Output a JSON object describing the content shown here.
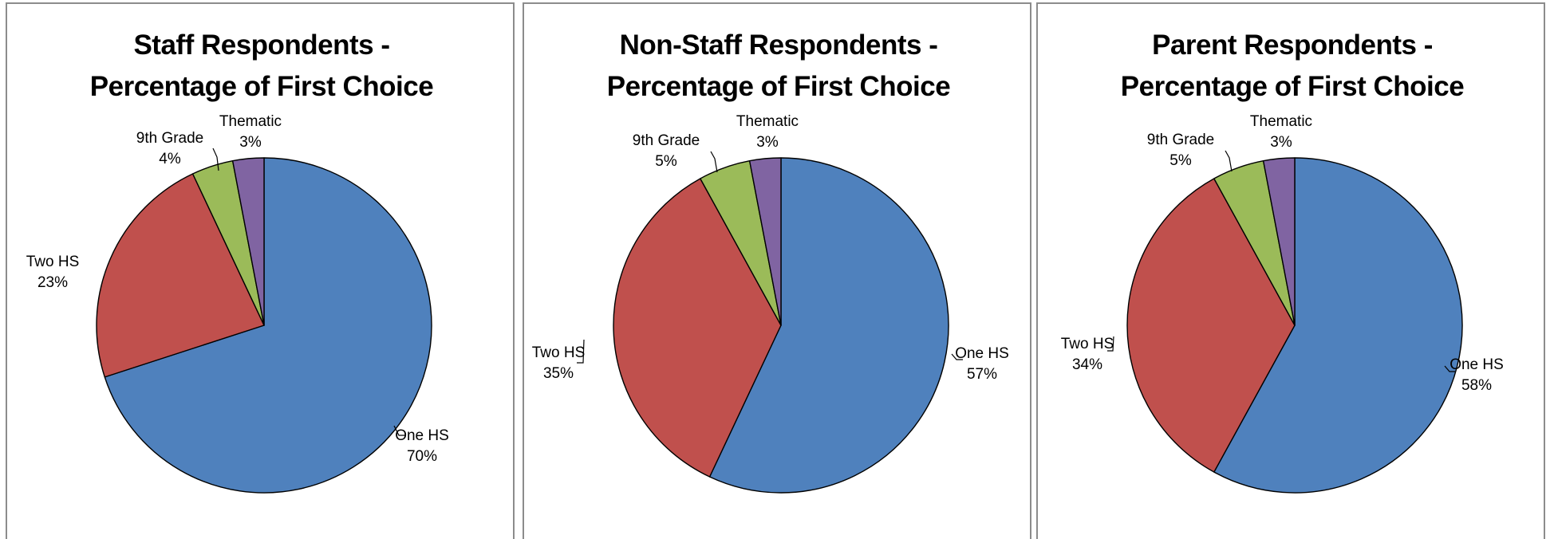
{
  "chart_data": [
    {
      "type": "pie",
      "title": [
        "Staff Respondents -",
        "Percentage of First Choice"
      ],
      "labels": [
        "One HS",
        "Two HS",
        "9th Grade",
        "Thematic"
      ],
      "values": [
        70,
        23,
        4,
        3
      ],
      "value_labels": [
        "70%",
        "23%",
        "4%",
        "3%"
      ],
      "colors": [
        "#4F81BD",
        "#C0504D",
        "#9BBB59",
        "#8064A2"
      ]
    },
    {
      "type": "pie",
      "title": [
        "Non-Staff Respondents -",
        "Percentage of First Choice"
      ],
      "labels": [
        "One HS",
        "Two HS",
        "9th Grade",
        "Thematic"
      ],
      "values": [
        57,
        35,
        5,
        3
      ],
      "value_labels": [
        "57%",
        "35%",
        "5%",
        "3%"
      ],
      "colors": [
        "#4F81BD",
        "#C0504D",
        "#9BBB59",
        "#8064A2"
      ]
    },
    {
      "type": "pie",
      "title": [
        "Parent Respondents -",
        "Percentage of First Choice"
      ],
      "labels": [
        "One HS",
        "Two HS",
        "9th Grade",
        "Thematic"
      ],
      "values": [
        58,
        34,
        5,
        3
      ],
      "value_labels": [
        "58%",
        "34%",
        "5%",
        "3%"
      ],
      "colors": [
        "#4F81BD",
        "#C0504D",
        "#9BBB59",
        "#8064A2"
      ]
    }
  ]
}
